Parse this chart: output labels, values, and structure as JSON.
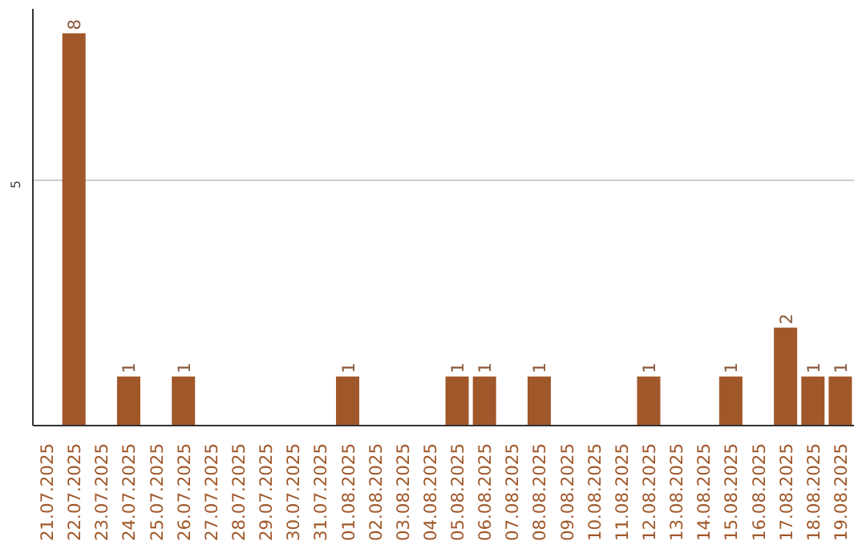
{
  "chart_data": {
    "type": "bar",
    "categories": [
      "21.07.2025",
      "22.07.2025",
      "23.07.2025",
      "24.07.2025",
      "25.07.2025",
      "26.07.2025",
      "27.07.2025",
      "28.07.2025",
      "29.07.2025",
      "30.07.2025",
      "31.07.2025",
      "01.08.2025",
      "02.08.2025",
      "03.08.2025",
      "04.08.2025",
      "05.08.2025",
      "06.08.2025",
      "07.08.2025",
      "08.08.2025",
      "09.08.2025",
      "10.08.2025",
      "11.08.2025",
      "12.08.2025",
      "13.08.2025",
      "14.08.2025",
      "15.08.2025",
      "16.08.2025",
      "17.08.2025",
      "18.08.2025",
      "19.08.2025"
    ],
    "values": [
      0,
      8,
      0,
      1,
      0,
      1,
      0,
      0,
      0,
      0,
      0,
      1,
      0,
      0,
      0,
      1,
      1,
      0,
      1,
      0,
      0,
      0,
      1,
      0,
      0,
      1,
      0,
      2,
      1,
      1
    ],
    "value_labels": [
      null,
      "8",
      null,
      "1",
      null,
      "1",
      null,
      null,
      null,
      null,
      null,
      "1",
      null,
      null,
      null,
      "1",
      "1",
      null,
      "1",
      null,
      null,
      null,
      "1",
      null,
      null,
      "1",
      null,
      "2",
      "1",
      "1"
    ],
    "color": "#a0582a",
    "ylim": [
      0,
      8.5
    ],
    "yticks": [
      5
    ],
    "grid": "y"
  }
}
